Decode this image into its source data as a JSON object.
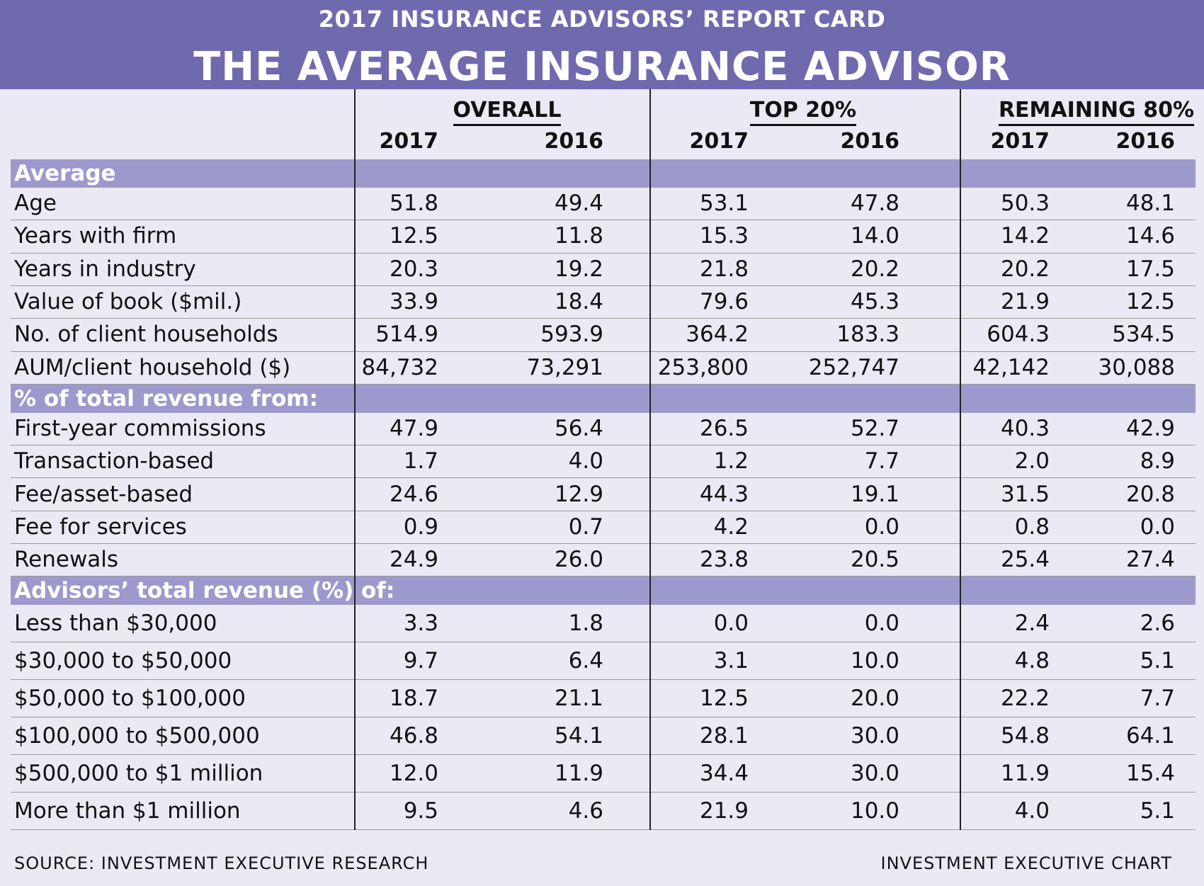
{
  "header": {
    "kicker": "2017 INSURANCE ADVISORS’ REPORT CARD",
    "title": "THE AVERAGE INSURANCE ADVISOR"
  },
  "colors": {
    "banner": "#6f6aae",
    "section_band": "#9e99cc",
    "background": "#ebe9f4"
  },
  "footer": {
    "source": "SOURCE: INVESTMENT EXECUTIVE RESEARCH",
    "credit": "INVESTMENT EXECUTIVE CHART"
  },
  "chart_data": {
    "type": "table",
    "groups": [
      {
        "name": "OVERALL",
        "years": [
          "2017",
          "2016"
        ]
      },
      {
        "name": "TOP 20%",
        "years": [
          "2017",
          "2016"
        ]
      },
      {
        "name": "REMAINING 80%",
        "years": [
          "2017",
          "2016"
        ]
      }
    ],
    "sections": [
      {
        "title": "Average",
        "rows": [
          {
            "label": "Age",
            "values": [
              "51.8",
              "49.4",
              "53.1",
              "47.8",
              "50.3",
              "48.1"
            ]
          },
          {
            "label": "Years with firm",
            "values": [
              "12.5",
              "11.8",
              "15.3",
              "14.0",
              "14.2",
              "14.6"
            ]
          },
          {
            "label": "Years in industry",
            "values": [
              "20.3",
              "19.2",
              "21.8",
              "20.2",
              "20.2",
              "17.5"
            ]
          },
          {
            "label": "Value of book ($mil.)",
            "values": [
              "33.9",
              "18.4",
              "79.6",
              "45.3",
              "21.9",
              "12.5"
            ]
          },
          {
            "label": "No. of client households",
            "values": [
              "514.9",
              "593.9",
              "364.2",
              "183.3",
              "604.3",
              "534.5"
            ]
          },
          {
            "label": "AUM/client household ($)",
            "values": [
              "84,732",
              "73,291",
              "253,800",
              "252,747",
              "42,142",
              "30,088"
            ]
          }
        ]
      },
      {
        "title": "% of total revenue from:",
        "rows": [
          {
            "label": "First-year commissions",
            "values": [
              "47.9",
              "56.4",
              "26.5",
              "52.7",
              "40.3",
              "42.9"
            ]
          },
          {
            "label": "Transaction-based",
            "values": [
              "1.7",
              "4.0",
              "1.2",
              "7.7",
              "2.0",
              "8.9"
            ]
          },
          {
            "label": "Fee/asset-based",
            "values": [
              "24.6",
              "12.9",
              "44.3",
              "19.1",
              "31.5",
              "20.8"
            ]
          },
          {
            "label": "Fee for services",
            "values": [
              "0.9",
              "0.7",
              "4.2",
              "0.0",
              "0.8",
              "0.0"
            ]
          },
          {
            "label": "Renewals",
            "values": [
              "24.9",
              "26.0",
              "23.8",
              "20.5",
              "25.4",
              "27.4"
            ]
          }
        ]
      },
      {
        "title": "Advisors’ total revenue (%) of:",
        "rows": [
          {
            "label": "Less than $30,000",
            "values": [
              "3.3",
              "1.8",
              "0.0",
              "0.0",
              "2.4",
              "2.6"
            ]
          },
          {
            "label": "$30,000 to $50,000",
            "values": [
              "9.7",
              "6.4",
              "3.1",
              "10.0",
              "4.8",
              "5.1"
            ]
          },
          {
            "label": "$50,000 to $100,000",
            "values": [
              "18.7",
              "21.1",
              "12.5",
              "20.0",
              "22.2",
              "7.7"
            ]
          },
          {
            "label": "$100,000 to $500,000",
            "values": [
              "46.8",
              "54.1",
              "28.1",
              "30.0",
              "54.8",
              "64.1"
            ]
          },
          {
            "label": "$500,000 to $1 million",
            "values": [
              "12.0",
              "11.9",
              "34.4",
              "30.0",
              "11.9",
              "15.4"
            ]
          },
          {
            "label": "More than $1 million",
            "values": [
              "9.5",
              "4.6",
              "21.9",
              "10.0",
              "4.0",
              "5.1"
            ]
          }
        ]
      }
    ]
  }
}
